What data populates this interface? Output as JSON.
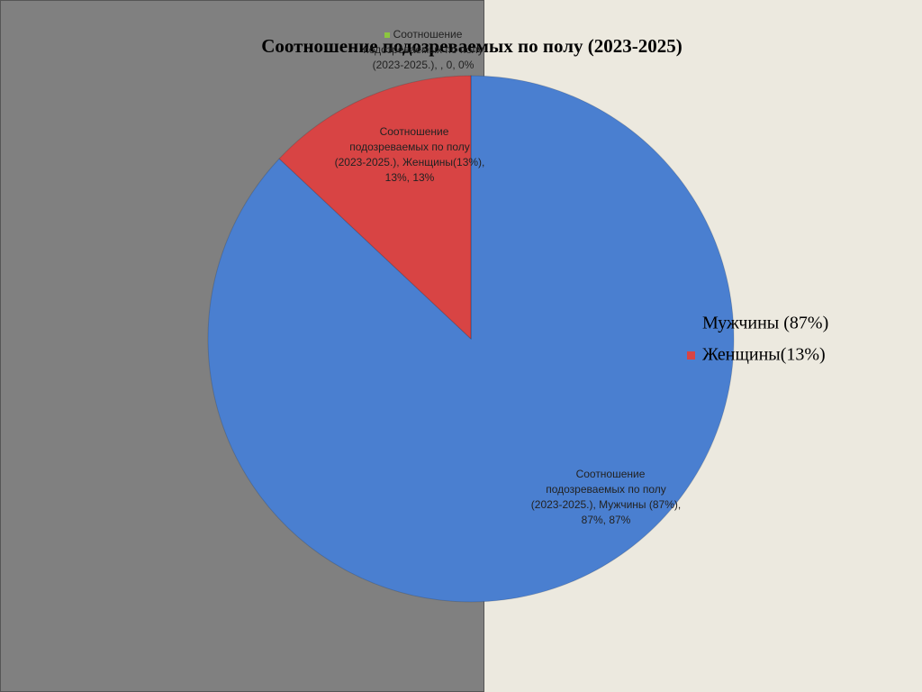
{
  "chart_data": {
    "type": "pie",
    "title": "Соотношение подозреваемых по полу (2023-2025)",
    "categories": [
      "Мужчины (87%)",
      "Женщины(13%)",
      null
    ],
    "values": [
      87,
      13,
      0
    ],
    "value_labels": [
      "Соотношение подозреваемых по полу (2023-2025.), Мужчины (87%), 87%, 87%",
      "Соотношение подозреваемых по полу (2023-2025.), Женщины(13%), 13%, 13%",
      "Соотношение подозреваемых по полу (2023-2025.), , 0, 0%"
    ],
    "colors": [
      "#4a7fd0",
      "#d84444",
      "#8cc63f"
    ],
    "legend": "right"
  }
}
